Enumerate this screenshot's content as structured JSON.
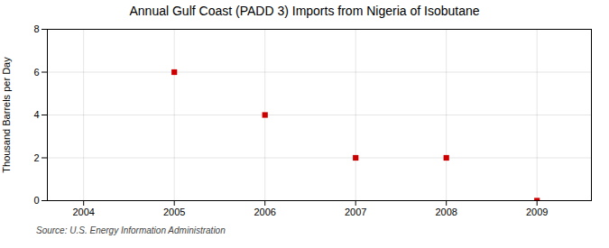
{
  "chart_data": {
    "type": "scatter",
    "title": "Annual Gulf Coast (PADD 3) Imports from Nigeria of Isobutane",
    "ylabel": "Thousand Barrels per Day",
    "source": "Source: U.S. Energy Information Administration",
    "x": [
      2005,
      2006,
      2007,
      2008,
      2009
    ],
    "values": [
      6,
      4,
      2,
      2,
      0
    ],
    "color": "#cc0000",
    "marker": "square",
    "xlim": [
      2003.6,
      2009.6
    ],
    "xticks": [
      2004,
      2005,
      2006,
      2007,
      2008,
      2009
    ],
    "ylim": [
      0,
      8
    ],
    "yticks": [
      0,
      2,
      4,
      6,
      8
    ],
    "grid": true
  }
}
